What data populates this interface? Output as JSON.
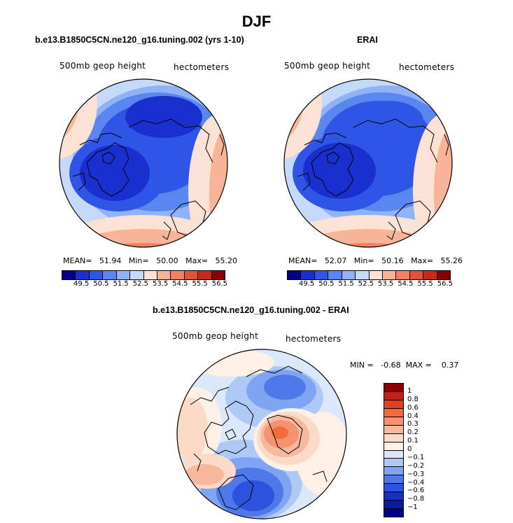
{
  "title": "DJF",
  "panels": {
    "model": {
      "header": "b.e13.B1850C5CN.ne120_g16.tuning.002 (yrs 1-10)",
      "left_label": "500mb geop height",
      "right_label": "hectometers",
      "stats": "MEAN=   51.94   Min=   50.00   Max=   55.20"
    },
    "obs": {
      "header": "ERAI",
      "left_label": "500mb geop height",
      "right_label": "hectometers",
      "stats": "MEAN=   52.07   Min=   50.16   Max=   55.26"
    },
    "diff": {
      "header": "b.e13.B1850C5CN.ne120_g16.tuning.002 - ERAI",
      "left_label": "500mb geop height",
      "right_label": "hectometers",
      "stats": "MIN =   -0.68  MAX =    0.37"
    }
  },
  "colorbar_abs": {
    "ticks": [
      "49.5",
      "50.5",
      "51.5",
      "52.5",
      "53.5",
      "54.5",
      "55.5",
      "56.5"
    ],
    "colors": [
      "#00008b",
      "#1a2fd0",
      "#2f55e6",
      "#5a86f0",
      "#8fb3f6",
      "#c5daf9",
      "#fbe2d5",
      "#f7b497",
      "#f08161",
      "#e3533a",
      "#c8291a",
      "#8b0000"
    ]
  },
  "colorbar_diff": {
    "ticks": [
      "1",
      "0.8",
      "0.6",
      "0.4",
      "0.3",
      "0.2",
      "0.1",
      "0",
      "-0.1",
      "-0.2",
      "-0.3",
      "-0.4",
      "-0.6",
      "-0.8",
      "-1"
    ],
    "colors": [
      "#8b0000",
      "#c0221a",
      "#e3401f",
      "#f46a3b",
      "#f59270",
      "#f7b89d",
      "#fbdac8",
      "#fdf0e6",
      "#dbe8fb",
      "#aec9f6",
      "#7fa4f1",
      "#4f78ea",
      "#2c52de",
      "#1730c2",
      "#0b1aa0",
      "#00008b"
    ]
  }
}
